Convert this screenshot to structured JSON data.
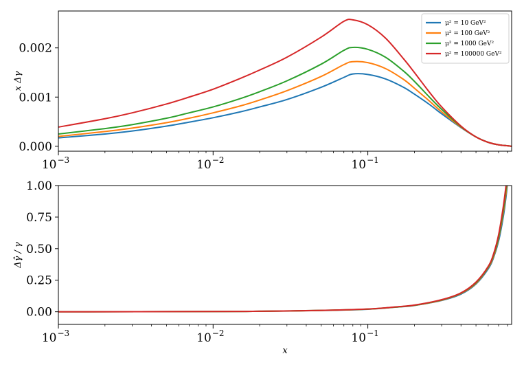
{
  "colors": {
    "series": [
      "#1f77b4",
      "#ff7f0e",
      "#2ca02c",
      "#d62728"
    ],
    "axes": "#000000",
    "legend_border": "#cccccc"
  },
  "chart_data": [
    {
      "type": "line",
      "xscale": "log",
      "xlim": [
        0.001,
        0.85
      ],
      "ylim": [
        -0.0001,
        0.00275
      ],
      "xlabel": "",
      "ylabel": "x Δγ",
      "xticks": [
        {
          "value": 0.001,
          "label": "10",
          "exp": "−3"
        },
        {
          "value": 0.01,
          "label": "10",
          "exp": "−2"
        },
        {
          "value": 0.1,
          "label": "10",
          "exp": "−1"
        }
      ],
      "yticks": [
        {
          "value": 0.0,
          "label": "0.000"
        },
        {
          "value": 0.001,
          "label": "0.001"
        },
        {
          "value": 0.002,
          "label": "0.002"
        }
      ],
      "grid": false,
      "legend_position": "top-right",
      "series": [
        {
          "name": "μ² = 10 GeV²",
          "x": [
            0.001,
            0.002,
            0.003,
            0.005,
            0.007,
            0.01,
            0.015,
            0.02,
            0.03,
            0.05,
            0.07,
            0.08,
            0.1,
            0.13,
            0.17,
            0.2,
            0.25,
            0.3,
            0.4,
            0.5,
            0.6,
            0.7,
            0.8,
            0.85
          ],
          "y": [
            0.00017,
            0.00025,
            0.00031,
            0.00041,
            0.00049,
            0.00058,
            0.0007,
            0.0008,
            0.00095,
            0.0012,
            0.0014,
            0.00147,
            0.00146,
            0.00137,
            0.0012,
            0.00106,
            0.00085,
            0.00066,
            0.00038,
            0.00019,
            8e-05,
            3e-05,
            1e-05,
            0.0
          ]
        },
        {
          "name": "μ² = 100 GeV²",
          "x": [
            0.001,
            0.002,
            0.003,
            0.005,
            0.007,
            0.01,
            0.015,
            0.02,
            0.03,
            0.05,
            0.07,
            0.08,
            0.1,
            0.13,
            0.17,
            0.2,
            0.25,
            0.3,
            0.4,
            0.5,
            0.6,
            0.7,
            0.8,
            0.85
          ],
          "y": [
            0.0002,
            0.0003,
            0.00037,
            0.00048,
            0.00057,
            0.00068,
            0.00082,
            0.00094,
            0.00113,
            0.00142,
            0.00166,
            0.00172,
            0.0017,
            0.00158,
            0.00136,
            0.00118,
            0.00092,
            0.0007,
            0.00039,
            0.00019,
            8e-05,
            3e-05,
            1e-05,
            0.0
          ]
        },
        {
          "name": "μ² = 1000 GeV²",
          "x": [
            0.001,
            0.002,
            0.003,
            0.005,
            0.007,
            0.01,
            0.015,
            0.02,
            0.03,
            0.05,
            0.07,
            0.08,
            0.1,
            0.13,
            0.17,
            0.2,
            0.25,
            0.3,
            0.4,
            0.5,
            0.6,
            0.7,
            0.8,
            0.85
          ],
          "y": [
            0.00025,
            0.00036,
            0.00044,
            0.00057,
            0.00068,
            0.0008,
            0.00097,
            0.00111,
            0.00133,
            0.00167,
            0.00195,
            0.00201,
            0.00197,
            0.00181,
            0.00153,
            0.00132,
            0.001,
            0.00075,
            0.0004,
            0.00019,
            8e-05,
            3e-05,
            1e-05,
            0.0
          ]
        },
        {
          "name": "μ² = 100000 GeV²",
          "x": [
            0.001,
            0.002,
            0.003,
            0.005,
            0.007,
            0.01,
            0.015,
            0.02,
            0.03,
            0.05,
            0.07,
            0.08,
            0.1,
            0.13,
            0.17,
            0.2,
            0.25,
            0.3,
            0.4,
            0.5,
            0.6,
            0.7,
            0.8,
            0.85
          ],
          "y": [
            0.00039,
            0.00056,
            0.00068,
            0.00086,
            0.001,
            0.00116,
            0.00138,
            0.00155,
            0.00181,
            0.00222,
            0.00254,
            0.00257,
            0.00247,
            0.0022,
            0.00178,
            0.0015,
            0.0011,
            0.0008,
            0.00041,
            0.00019,
            8e-05,
            3e-05,
            1e-05,
            0.0
          ]
        }
      ]
    },
    {
      "type": "line",
      "xscale": "log",
      "xlim": [
        0.001,
        0.85
      ],
      "ylim": [
        -0.1,
        1.0
      ],
      "xlabel": "x",
      "ylabel": "Δγ̂ / γ",
      "xticks": [
        {
          "value": 0.001,
          "label": "10",
          "exp": "−3"
        },
        {
          "value": 0.01,
          "label": "10",
          "exp": "−2"
        },
        {
          "value": 0.1,
          "label": "10",
          "exp": "−1"
        }
      ],
      "yticks": [
        {
          "value": 0.0,
          "label": "0.00"
        },
        {
          "value": 0.25,
          "label": "0.25"
        },
        {
          "value": 0.5,
          "label": "0.50"
        },
        {
          "value": 0.75,
          "label": "0.75"
        },
        {
          "value": 1.0,
          "label": "1.00"
        }
      ],
      "grid": false,
      "series": [
        {
          "x": [
            0.001,
            0.01,
            0.02,
            0.05,
            0.1,
            0.15,
            0.2,
            0.3,
            0.4,
            0.5,
            0.6,
            0.65,
            0.7,
            0.75,
            0.78,
            0.8,
            0.82
          ],
          "y": [
            0.0,
            0.002,
            0.004,
            0.01,
            0.02,
            0.036,
            0.05,
            0.09,
            0.14,
            0.22,
            0.34,
            0.43,
            0.56,
            0.75,
            0.9,
            1.02,
            1.15
          ]
        },
        {
          "x": [
            0.001,
            0.01,
            0.02,
            0.05,
            0.1,
            0.15,
            0.2,
            0.3,
            0.4,
            0.5,
            0.6,
            0.65,
            0.7,
            0.75,
            0.78,
            0.8,
            0.82
          ],
          "y": [
            0.0,
            0.002,
            0.004,
            0.01,
            0.021,
            0.037,
            0.051,
            0.092,
            0.145,
            0.225,
            0.35,
            0.44,
            0.58,
            0.78,
            0.93,
            1.05,
            1.18
          ]
        },
        {
          "x": [
            0.001,
            0.01,
            0.02,
            0.05,
            0.1,
            0.15,
            0.2,
            0.3,
            0.4,
            0.5,
            0.6,
            0.65,
            0.7,
            0.75,
            0.78,
            0.8,
            0.82
          ],
          "y": [
            0.0,
            0.002,
            0.004,
            0.011,
            0.021,
            0.037,
            0.052,
            0.094,
            0.148,
            0.23,
            0.355,
            0.45,
            0.59,
            0.8,
            0.96,
            1.08,
            1.2
          ]
        },
        {
          "x": [
            0.001,
            0.01,
            0.02,
            0.05,
            0.1,
            0.15,
            0.2,
            0.3,
            0.4,
            0.5,
            0.6,
            0.65,
            0.7,
            0.75,
            0.78,
            0.8,
            0.82
          ],
          "y": [
            0.0,
            0.002,
            0.004,
            0.011,
            0.022,
            0.038,
            0.053,
            0.096,
            0.15,
            0.235,
            0.36,
            0.46,
            0.61,
            0.83,
            0.99,
            1.1,
            1.22
          ]
        }
      ]
    }
  ]
}
